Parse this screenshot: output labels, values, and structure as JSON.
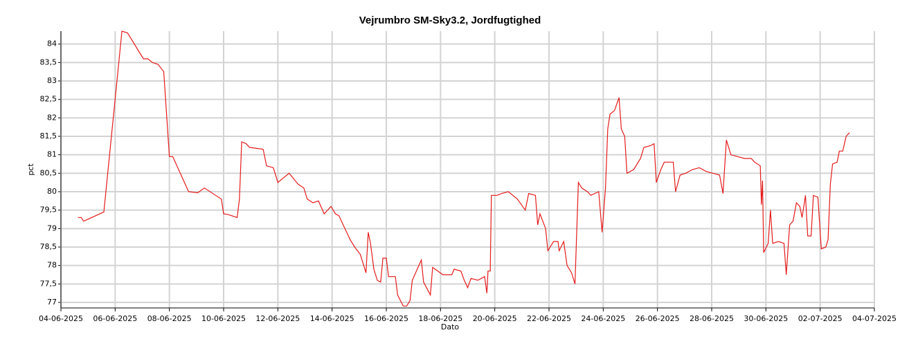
{
  "chart_data": {
    "type": "line",
    "title": "Vejrumbro SM-Sky3.2, Jordfugtighed",
    "x_label": "Dato",
    "y_label": "pct",
    "grid": true,
    "xlim": [
      "2025-06-04T00:00",
      "2025-07-04T00:00"
    ],
    "ylim": [
      76.85,
      84.35
    ],
    "xticks": [
      {
        "value": "2025-06-04T00:00",
        "label": "04-06-2025"
      },
      {
        "value": "2025-06-06T00:00",
        "label": "06-06-2025"
      },
      {
        "value": "2025-06-08T00:00",
        "label": "08-06-2025"
      },
      {
        "value": "2025-06-10T00:00",
        "label": "10-06-2025"
      },
      {
        "value": "2025-06-12T00:00",
        "label": "12-06-2025"
      },
      {
        "value": "2025-06-14T00:00",
        "label": "14-06-2025"
      },
      {
        "value": "2025-06-16T00:00",
        "label": "16-06-2025"
      },
      {
        "value": "2025-06-18T00:00",
        "label": "18-06-2025"
      },
      {
        "value": "2025-06-20T00:00",
        "label": "20-06-2025"
      },
      {
        "value": "2025-06-22T00:00",
        "label": "22-06-2025"
      },
      {
        "value": "2025-06-24T00:00",
        "label": "24-06-2025"
      },
      {
        "value": "2025-06-26T00:00",
        "label": "26-06-2025"
      },
      {
        "value": "2025-06-28T00:00",
        "label": "28-06-2025"
      },
      {
        "value": "2025-06-30T00:00",
        "label": "30-06-2025"
      },
      {
        "value": "2025-07-02T00:00",
        "label": "02-07-2025"
      },
      {
        "value": "2025-07-04T00:00",
        "label": "04-07-2025"
      }
    ],
    "yticks": [
      77,
      {
        "value": 77.5,
        "label": "77,5"
      },
      78,
      {
        "value": 78.5,
        "label": "78,5"
      },
      79,
      {
        "value": 79.5,
        "label": "79,5"
      },
      80,
      {
        "value": 80.5,
        "label": "80,5"
      },
      81,
      {
        "value": 81.5,
        "label": "81,5"
      },
      82,
      {
        "value": 82.5,
        "label": "82,5"
      },
      83,
      {
        "value": 83.5,
        "label": "83,5"
      },
      84
    ],
    "x": [
      "2025-06-04T15:00",
      "2025-06-04T18:00",
      "2025-06-04T20:00",
      "2025-06-05T14:00",
      "2025-06-06T06:00",
      "2025-06-06T11:00",
      "2025-06-07T01:00",
      "2025-06-07T05:00",
      "2025-06-07T09:00",
      "2025-06-07T14:00",
      "2025-06-07T19:00",
      "2025-06-08T00:00",
      "2025-06-08T03:00",
      "2025-06-08T17:00",
      "2025-06-09T01:00",
      "2025-06-09T07:00",
      "2025-06-09T22:00",
      "2025-06-10T00:00",
      "2025-06-10T04:00",
      "2025-06-10T12:00",
      "2025-06-10T14:00",
      "2025-06-10T16:00",
      "2025-06-10T20:00",
      "2025-06-10T23:00",
      "2025-06-11T11:00",
      "2025-06-11T14:00",
      "2025-06-11T20:00",
      "2025-06-12T00:00",
      "2025-06-12T10:00",
      "2025-06-12T18:00",
      "2025-06-12T23:00",
      "2025-06-13T02:00",
      "2025-06-13T07:00",
      "2025-06-13T12:00",
      "2025-06-13T17:00",
      "2025-06-13T23:00",
      "2025-06-14T03:00",
      "2025-06-14T06:00",
      "2025-06-14T16:00",
      "2025-06-14T20:00",
      "2025-06-15T01:00",
      "2025-06-15T06:00",
      "2025-06-15T08:00",
      "2025-06-15T10:00",
      "2025-06-15T13:00",
      "2025-06-15T16:00",
      "2025-06-15T19:00",
      "2025-06-15T21:00",
      "2025-06-16T00:00",
      "2025-06-16T02:00",
      "2025-06-16T08:00",
      "2025-06-16T10:00",
      "2025-06-16T15:00",
      "2025-06-16T18:00",
      "2025-06-16T21:00",
      "2025-06-16T23:00",
      "2025-06-17T07:00",
      "2025-06-17T09:00",
      "2025-06-17T15:00",
      "2025-06-17T17:00",
      "2025-06-18T02:00",
      "2025-06-18T10:00",
      "2025-06-18T12:00",
      "2025-06-18T18:00",
      "2025-06-18T21:00",
      "2025-06-19T00:00",
      "2025-06-19T03:00",
      "2025-06-19T09:00",
      "2025-06-19T15:00",
      "2025-06-19T17:00",
      "2025-06-19T18:00",
      "2025-06-19T20:00",
      "2025-06-19T21:00",
      "2025-06-20T02:00",
      "2025-06-20T06:00",
      "2025-06-20T12:00",
      "2025-06-20T20:00",
      "2025-06-21T03:00",
      "2025-06-21T06:00",
      "2025-06-21T12:00",
      "2025-06-21T14:00",
      "2025-06-21T16:00",
      "2025-06-21T21:00",
      "2025-06-21T23:00",
      "2025-06-22T04:00",
      "2025-06-22T08:00",
      "2025-06-22T09:00",
      "2025-06-22T13:00",
      "2025-06-22T16:00",
      "2025-06-22T20:00",
      "2025-06-22T23:00",
      "2025-06-23T02:00",
      "2025-06-23T05:00",
      "2025-06-23T10:00",
      "2025-06-23T13:00",
      "2025-06-23T20:00",
      "2025-06-23T23:00",
      "2025-06-24T02:00",
      "2025-06-24T04:00",
      "2025-06-24T06:00",
      "2025-06-24T10:00",
      "2025-06-24T14:00",
      "2025-06-24T16:00",
      "2025-06-24T19:00",
      "2025-06-24T21:00",
      "2025-06-25T03:00",
      "2025-06-25T09:00",
      "2025-06-25T12:00",
      "2025-06-25T18:00",
      "2025-06-25T21:00",
      "2025-06-25T23:00",
      "2025-06-26T03:00",
      "2025-06-26T06:00",
      "2025-06-26T14:00",
      "2025-06-26T16:00",
      "2025-06-26T20:00",
      "2025-06-27T01:00",
      "2025-06-27T07:00",
      "2025-06-27T13:00",
      "2025-06-27T19:00",
      "2025-06-28T01:00",
      "2025-06-28T07:00",
      "2025-06-28T10:00",
      "2025-06-28T13:00",
      "2025-06-28T17:00",
      "2025-06-28T23:00",
      "2025-06-29T05:00",
      "2025-06-29T11:00",
      "2025-06-29T14:00",
      "2025-06-29T19:00",
      "2025-06-29T20:00",
      "2025-06-29T21:00",
      "2025-06-29T22:00",
      "2025-06-30T02:00",
      "2025-06-30T04:00",
      "2025-06-30T06:00",
      "2025-06-30T11:00",
      "2025-06-30T16:00",
      "2025-06-30T18:00",
      "2025-06-30T21:00",
      "2025-07-01T00:00",
      "2025-07-01T03:00",
      "2025-07-01T06:00",
      "2025-07-01T08:00",
      "2025-07-01T11:00",
      "2025-07-01T13:00",
      "2025-07-01T16:00",
      "2025-07-01T18:00",
      "2025-07-01T22:00",
      "2025-07-02T01:00",
      "2025-07-02T05:00",
      "2025-07-02T07:00",
      "2025-07-02T09:00",
      "2025-07-02T11:00",
      "2025-07-02T15:00",
      "2025-07-02T17:00",
      "2025-07-02T20:00",
      "2025-07-02T23:00",
      "2025-07-03T02:00"
    ],
    "series": [
      {
        "color": "#e41a1a",
        "values": [
          79.3,
          79.3,
          79.2,
          79.45,
          84.35,
          84.3,
          83.6,
          83.6,
          83.5,
          83.45,
          83.25,
          80.95,
          80.95,
          80.0,
          79.97,
          80.1,
          79.8,
          79.4,
          79.38,
          79.3,
          79.8,
          81.35,
          81.3,
          81.2,
          81.15,
          80.7,
          80.65,
          80.25,
          80.5,
          80.2,
          80.1,
          79.8,
          79.7,
          79.75,
          79.4,
          79.6,
          79.4,
          79.35,
          78.7,
          78.5,
          78.3,
          77.8,
          78.9,
          78.6,
          77.9,
          77.6,
          77.55,
          78.2,
          78.2,
          77.7,
          77.7,
          77.2,
          76.9,
          76.9,
          77.05,
          77.6,
          78.15,
          77.55,
          77.2,
          77.95,
          77.75,
          77.75,
          77.9,
          77.85,
          77.6,
          77.4,
          77.65,
          77.6,
          77.7,
          77.25,
          77.85,
          77.85,
          79.9,
          79.9,
          79.95,
          80.0,
          79.8,
          79.5,
          79.95,
          79.9,
          79.1,
          79.4,
          79.0,
          78.4,
          78.65,
          78.65,
          78.4,
          78.65,
          78.0,
          77.8,
          77.5,
          80.25,
          80.1,
          80.0,
          79.9,
          80.0,
          78.9,
          80.1,
          81.7,
          82.1,
          82.2,
          82.55,
          81.7,
          81.5,
          80.5,
          80.6,
          80.9,
          81.2,
          81.25,
          81.3,
          80.25,
          80.6,
          80.8,
          80.8,
          80.0,
          80.45,
          80.5,
          80.6,
          80.65,
          80.55,
          80.5,
          80.45,
          79.95,
          81.4,
          81.0,
          80.95,
          80.9,
          80.9,
          80.8,
          80.7,
          79.65,
          80.3,
          78.35,
          78.6,
          79.5,
          78.6,
          78.65,
          78.6,
          77.75,
          79.1,
          79.2,
          79.7,
          79.6,
          79.3,
          79.9,
          78.8,
          78.8,
          79.9,
          79.85,
          78.45,
          78.5,
          78.7,
          80.2,
          80.75,
          80.8,
          81.1,
          81.1,
          81.5,
          81.6
        ]
      }
    ]
  }
}
